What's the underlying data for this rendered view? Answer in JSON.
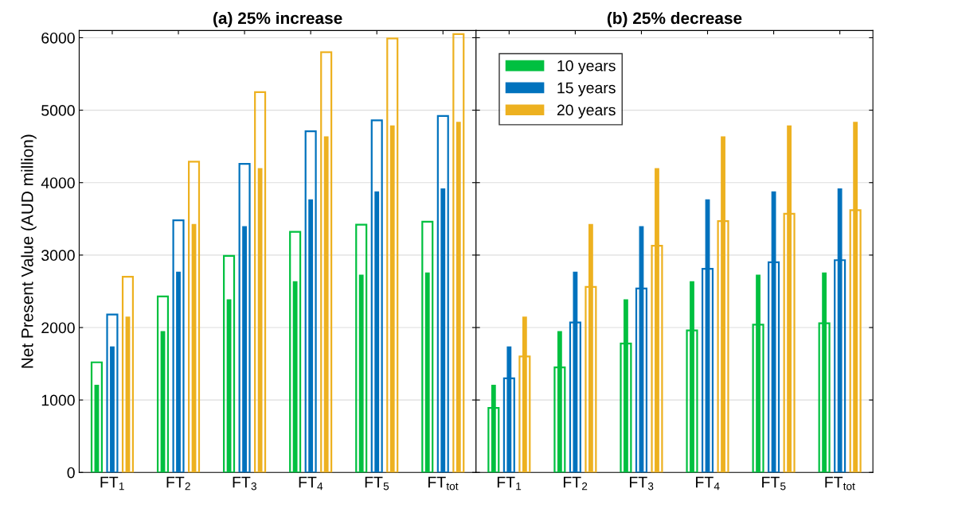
{
  "chart_data": [
    {
      "type": "bar",
      "title": "(a) 25% increase",
      "ylabel": "Net Present Value (AUD million)",
      "categories": [
        "FT$_{1}$",
        "FT$_{2}$",
        "FT$_{3}$",
        "FT$_{4}$",
        "FT$_{5}$",
        "FT$_{tot}$"
      ],
      "series": [
        {
          "color": "#00c040",
          "values": [
            1210,
            1950,
            2390,
            2640,
            2730,
            2760
          ]
        },
        {
          "color": "#0072bd",
          "values": [
            1740,
            2770,
            3400,
            3770,
            3880,
            3920
          ]
        },
        {
          "color": "#edb120",
          "values": [
            2150,
            3430,
            4200,
            4640,
            4790,
            4840
          ]
        },
        {
          "color": "#00c040",
          "values": [
            1520,
            2430,
            2990,
            3320,
            3420,
            3460
          ]
        },
        {
          "color": "#0072bd",
          "values": [
            2180,
            3480,
            4260,
            4710,
            4860,
            4920
          ]
        },
        {
          "color": "#edb120",
          "values": [
            2700,
            4290,
            5250,
            5800,
            5990,
            6050
          ]
        }
      ],
      "ylim": [
        0,
        6100
      ],
      "yticks": [
        0,
        1000,
        2000,
        3000,
        4000,
        5000,
        6000
      ],
      "grid": "y",
      "legend": false
    },
    {
      "type": "bar",
      "title": "(b) 25% decrease",
      "categories": [
        "FT$_{1}$",
        "FT$_{2}$",
        "FT$_{3}$",
        "FT$_{4}$",
        "FT$_{5}$",
        "FT$_{tot}$"
      ],
      "series": [
        {
          "name": "10 years",
          "color": "#00c040",
          "values": [
            1210,
            1950,
            2390,
            2640,
            2730,
            2760
          ]
        },
        {
          "name": "15 years",
          "color": "#0072bd",
          "values": [
            1740,
            2770,
            3400,
            3770,
            3880,
            3920
          ]
        },
        {
          "name": "20 years",
          "color": "#edb120",
          "values": [
            2150,
            3430,
            4200,
            4640,
            4790,
            4840
          ]
        },
        {
          "color": "#00c040",
          "values": [
            890,
            1450,
            1780,
            1960,
            2040,
            2060
          ]
        },
        {
          "color": "#0072bd",
          "values": [
            1300,
            2070,
            2540,
            2810,
            2900,
            2930
          ]
        },
        {
          "color": "#edb120",
          "values": [
            1600,
            2560,
            3130,
            3470,
            3570,
            3620
          ]
        }
      ],
      "ylim": [
        0,
        6100
      ],
      "yticks": [
        0,
        1000,
        2000,
        3000,
        4000,
        5000,
        6000
      ],
      "grid": "y",
      "legend": "top left",
      "tick_labels": "x"
    }
  ]
}
